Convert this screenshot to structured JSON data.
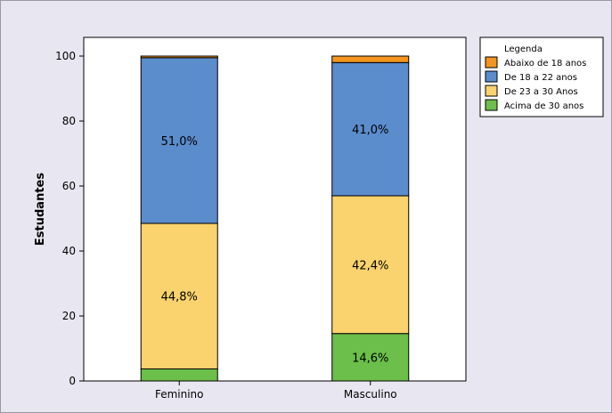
{
  "chart_data": {
    "type": "bar",
    "stacked": true,
    "categories": [
      "Feminino",
      "Masculino"
    ],
    "series": [
      {
        "name": "Acima de 30 anos",
        "color": "#6cbf4a",
        "values": [
          3.7,
          14.6
        ],
        "labels": [
          "",
          "14,6%"
        ]
      },
      {
        "name": "De 23 a 30 Anos",
        "color": "#fad36e",
        "values": [
          44.8,
          42.4
        ],
        "labels": [
          "44,8%",
          "42,4%"
        ]
      },
      {
        "name": "De 18 a 22 anos",
        "color": "#5b8ccc",
        "values": [
          51.0,
          41.0
        ],
        "labels": [
          "51,0%",
          "41,0%"
        ]
      },
      {
        "name": "Abaixo de 18 anos",
        "color": "#f3951f",
        "values": [
          0.5,
          2.0
        ],
        "labels": [
          "",
          ""
        ]
      }
    ],
    "ylabel": "Estudantes",
    "xlabel": "",
    "ylim": [
      0,
      100
    ],
    "yticks": [
      0,
      20,
      40,
      60,
      80,
      100
    ],
    "grid": false,
    "legend": {
      "title": "Legenda",
      "position": "top-right",
      "order": [
        "Abaixo de 18 anos",
        "De 18 a 22 anos",
        "De 23 a 30 Anos",
        "Acima de 30 anos"
      ]
    },
    "plot_background": "#ffffff"
  }
}
